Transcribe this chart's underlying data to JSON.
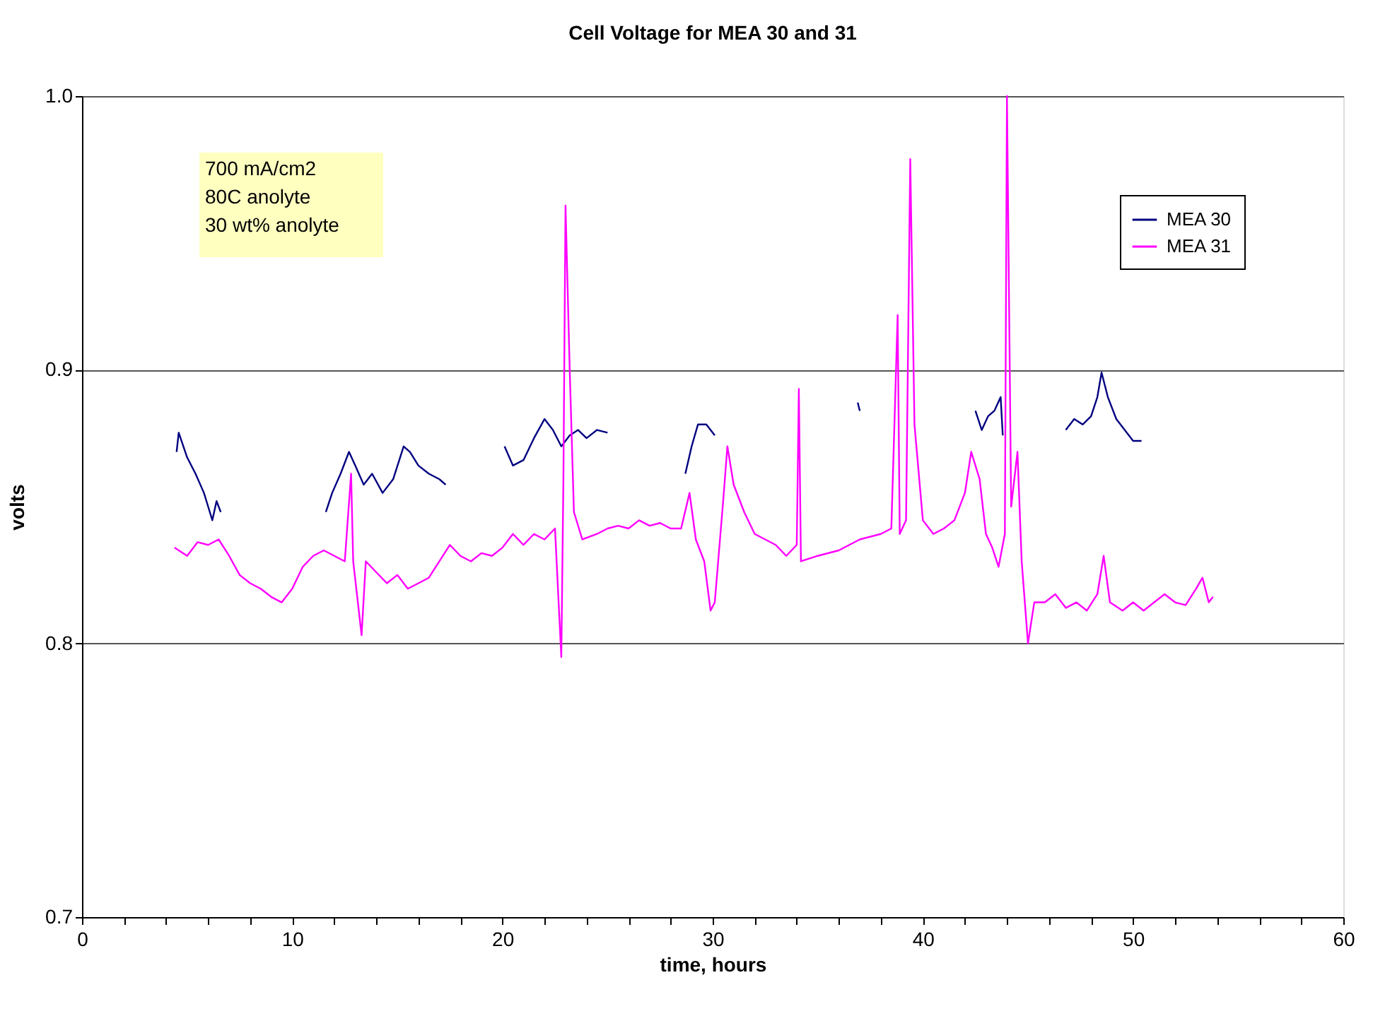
{
  "chart_data": {
    "type": "line",
    "title": "Cell Voltage for MEA 30 and 31",
    "xlabel": "time, hours",
    "ylabel": "volts",
    "xlim": [
      0,
      60
    ],
    "xticks": [
      0,
      {
        "value": 2,
        "label": null
      },
      {
        "value": 4,
        "label": null
      },
      {
        "value": 6,
        "label": null
      },
      {
        "value": 8,
        "label": null
      },
      10,
      {
        "value": 12,
        "label": null
      },
      {
        "value": 14,
        "label": null
      },
      {
        "value": 16,
        "label": null
      },
      {
        "value": 18,
        "label": null
      },
      20,
      {
        "value": 22,
        "label": null
      },
      {
        "value": 24,
        "label": null
      },
      {
        "value": 26,
        "label": null
      },
      {
        "value": 28,
        "label": null
      },
      30,
      {
        "value": 32,
        "label": null
      },
      {
        "value": 34,
        "label": null
      },
      {
        "value": 36,
        "label": null
      },
      {
        "value": 38,
        "label": null
      },
      40,
      {
        "value": 42,
        "label": null
      },
      {
        "value": 44,
        "label": null
      },
      {
        "value": 46,
        "label": null
      },
      {
        "value": 48,
        "label": null
      },
      50,
      {
        "value": 52,
        "label": null
      },
      {
        "value": 54,
        "label": null
      },
      {
        "value": 56,
        "label": null
      },
      {
        "value": 58,
        "label": null
      },
      60
    ],
    "ylim": [
      0.7,
      1.0
    ],
    "yticks": [
      0.7,
      0.8,
      0.9,
      {
        "value": 1.0,
        "label": "1.0"
      }
    ],
    "grid": "y",
    "legend": "top right",
    "line_style": "solid",
    "marker": "none",
    "annotations": [
      "700 mA/cm2",
      "80C anolyte",
      "30 wt% anolyte"
    ],
    "series": [
      {
        "name": "MEA 30",
        "color": "#000080",
        "x": [
          4.5,
          4.6,
          5.0,
          5.4,
          5.8,
          6.0,
          6.2,
          6.4,
          6.6,
          7,
          11.6,
          11.9,
          12.3,
          12.7,
          13.0,
          13.4,
          13.8,
          14.3,
          14.8,
          15.3,
          15.6,
          16.0,
          16.5,
          17.0,
          17.3,
          18,
          20.1,
          20.5,
          21.0,
          21.5,
          22.0,
          22.4,
          22.8,
          23.2,
          23.6,
          24.0,
          24.5,
          25.0,
          26,
          28.7,
          29.0,
          29.3,
          29.7,
          30.1,
          31,
          36.9,
          37.0,
          40,
          42.5,
          42.8,
          43.1,
          43.4,
          43.7,
          43.8,
          45,
          46.8,
          47.2,
          47.6,
          48.0,
          48.3,
          48.5,
          48.8,
          49.2,
          49.6,
          50.0,
          50.4
        ],
        "values": [
          0.87,
          0.877,
          0.868,
          0.862,
          0.855,
          0.85,
          0.845,
          0.852,
          0.848,
          null,
          0.848,
          0.855,
          0.862,
          0.87,
          0.865,
          0.858,
          0.862,
          0.855,
          0.86,
          0.872,
          0.87,
          0.865,
          0.862,
          0.86,
          0.858,
          null,
          0.872,
          0.865,
          0.867,
          0.875,
          0.882,
          0.878,
          0.872,
          0.876,
          0.878,
          0.875,
          0.878,
          0.877,
          null,
          0.862,
          0.872,
          0.88,
          0.88,
          0.876,
          null,
          0.888,
          0.885,
          null,
          0.885,
          0.878,
          0.883,
          0.885,
          0.89,
          0.876,
          null,
          0.878,
          0.882,
          0.88,
          0.883,
          0.89,
          0.899,
          0.89,
          0.882,
          0.878,
          0.874,
          0.874
        ]
      },
      {
        "name": "MEA 31",
        "color": "#ff00ff",
        "x": [
          4.4,
          5.0,
          5.5,
          6.0,
          6.5,
          7.0,
          7.5,
          8.0,
          8.5,
          9.0,
          9.5,
          10.0,
          10.5,
          11.0,
          11.5,
          12.0,
          12.5,
          12.8,
          12.9,
          13.3,
          13.5,
          14.0,
          14.5,
          15.0,
          15.5,
          16.0,
          16.5,
          17.0,
          17.5,
          18.0,
          18.5,
          19.0,
          19.5,
          20.0,
          20.5,
          21.0,
          21.5,
          22.0,
          22.5,
          22.8,
          22.9,
          23.0,
          23.2,
          23.4,
          23.8,
          24.5,
          25.0,
          25.5,
          26.0,
          26.5,
          27.0,
          27.5,
          28.0,
          28.5,
          28.9,
          29.2,
          29.6,
          29.9,
          30.1,
          30.5,
          30.7,
          31.0,
          31.5,
          32.0,
          32.5,
          33.0,
          33.5,
          34.0,
          34.1,
          34.2,
          35.0,
          36.0,
          37.0,
          38.0,
          38.5,
          38.8,
          38.9,
          39.2,
          39.4,
          39.6,
          40.0,
          40.5,
          41.0,
          41.5,
          42.0,
          42.3,
          42.7,
          43.0,
          43.3,
          43.6,
          43.9,
          44.0,
          44.2,
          44.5,
          44.7,
          45.0,
          45.3,
          45.8,
          46.3,
          46.8,
          47.3,
          47.8,
          48.3,
          48.6,
          48.9,
          49.5,
          50.0,
          50.5,
          51.0,
          51.5,
          52.0,
          52.5,
          53.0,
          53.3,
          53.6,
          53.8
        ],
        "values": [
          0.835,
          0.832,
          0.837,
          0.836,
          0.838,
          0.832,
          0.825,
          0.822,
          0.82,
          0.817,
          0.815,
          0.82,
          0.828,
          0.832,
          0.834,
          0.832,
          0.83,
          0.862,
          0.83,
          0.803,
          0.83,
          0.826,
          0.822,
          0.825,
          0.82,
          0.822,
          0.824,
          0.83,
          0.836,
          0.832,
          0.83,
          0.833,
          0.832,
          0.835,
          0.84,
          0.836,
          0.84,
          0.838,
          0.842,
          0.795,
          0.86,
          0.96,
          0.9,
          0.848,
          0.838,
          0.84,
          0.842,
          0.843,
          0.842,
          0.845,
          0.843,
          0.844,
          0.842,
          0.842,
          0.855,
          0.838,
          0.83,
          0.812,
          0.815,
          0.852,
          0.872,
          0.858,
          0.848,
          0.84,
          0.838,
          0.836,
          0.832,
          0.836,
          0.893,
          0.83,
          0.832,
          0.834,
          0.838,
          0.84,
          0.842,
          0.92,
          0.84,
          0.845,
          0.977,
          0.88,
          0.845,
          0.84,
          0.842,
          0.845,
          0.855,
          0.87,
          0.86,
          0.84,
          0.835,
          0.828,
          0.84,
          1.0,
          0.85,
          0.87,
          0.83,
          0.8,
          0.815,
          0.815,
          0.818,
          0.813,
          0.815,
          0.812,
          0.818,
          0.832,
          0.815,
          0.812,
          0.815,
          0.812,
          0.815,
          0.818,
          0.815,
          0.814,
          0.82,
          0.824,
          0.815,
          0.817
        ]
      }
    ]
  }
}
